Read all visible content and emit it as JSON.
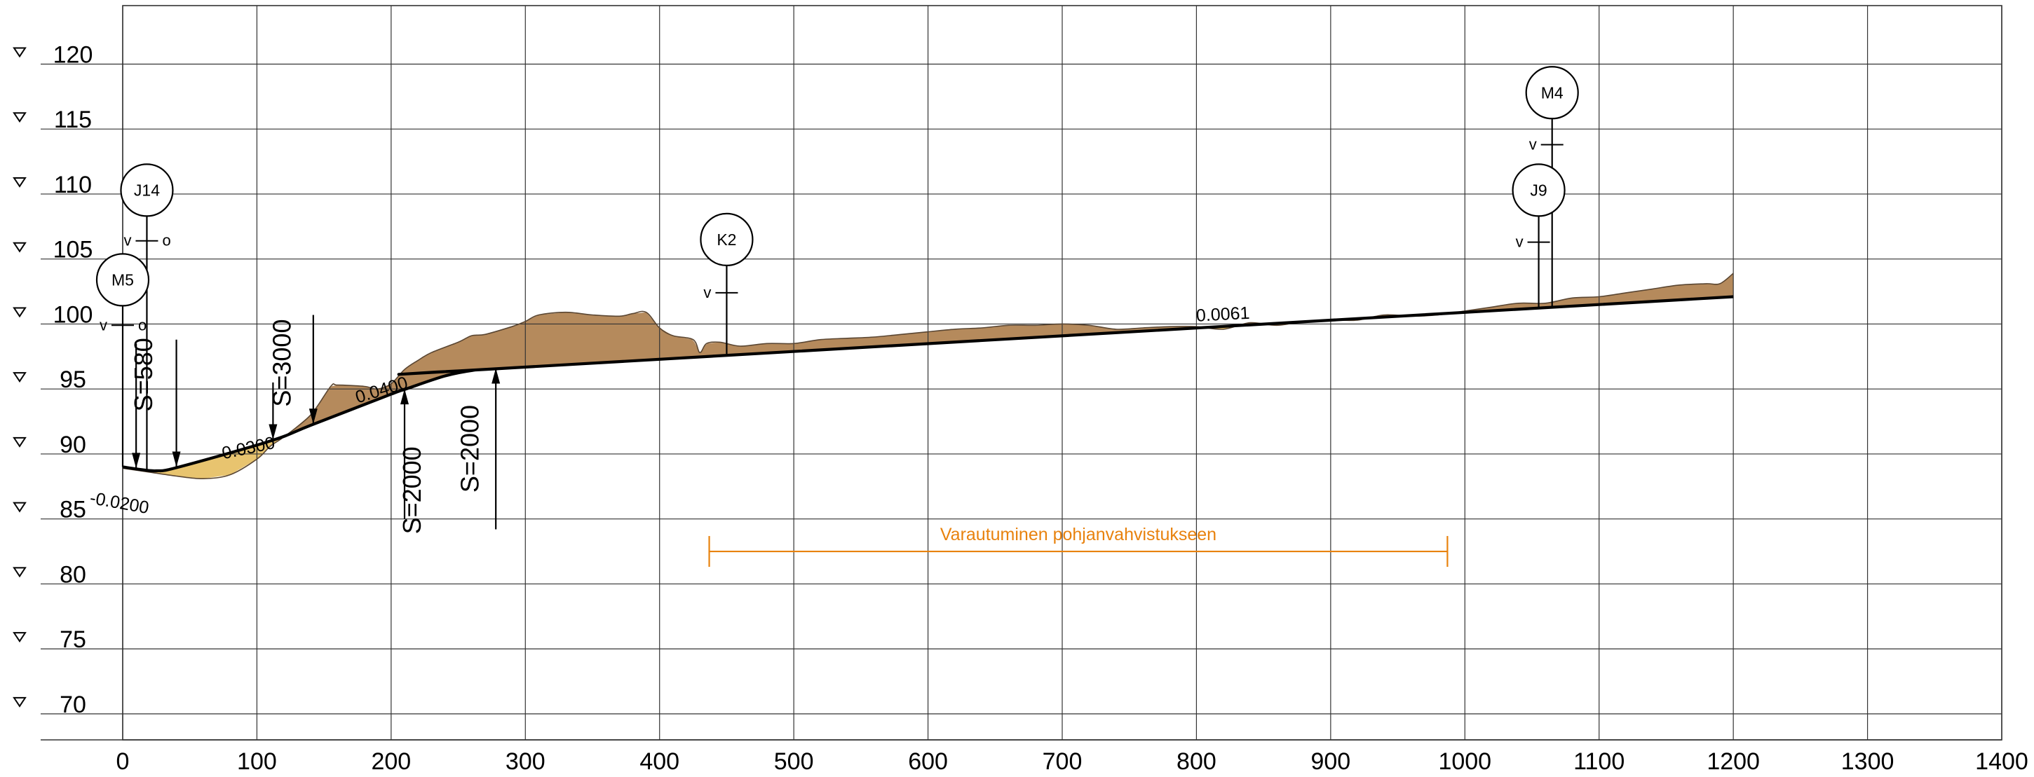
{
  "chart_data": {
    "type": "line",
    "title": "",
    "xlabel": "",
    "ylabel": "",
    "x_ticks": [
      "0",
      "100",
      "200",
      "300",
      "400",
      "500",
      "600",
      "700",
      "800",
      "900",
      "1000",
      "1100",
      "1200",
      "1300",
      "1400"
    ],
    "y_ticks": [
      "70",
      "75",
      "80",
      "85",
      "90",
      "95",
      "100",
      "105",
      "110",
      "115",
      "120"
    ],
    "xlim": [
      0,
      1400
    ],
    "ylim": [
      68,
      124.5
    ],
    "grid": true,
    "design_line": {
      "x": [
        0,
        10,
        25,
        42,
        110,
        140,
        200,
        211,
        240,
        262,
        278,
        1200
      ],
      "y": [
        89.0,
        88.85,
        88.7,
        89.0,
        91.0,
        92.2,
        94.6,
        95.0,
        96.0,
        96.45,
        96.55,
        102.1
      ]
    },
    "ground_line": {
      "x": [
        0,
        20,
        40,
        60,
        80,
        100,
        110,
        120,
        140,
        155,
        160,
        180,
        190,
        200,
        210,
        220,
        230,
        250,
        260,
        270,
        290,
        300,
        310,
        330,
        350,
        370,
        380,
        390,
        400,
        410,
        425,
        430,
        435,
        445,
        460,
        480,
        500,
        520,
        540,
        560,
        580,
        600,
        620,
        640,
        660,
        680,
        700,
        720,
        740,
        760,
        780,
        800,
        820,
        840,
        860,
        880,
        900,
        920,
        940,
        960,
        980,
        1000,
        1020,
        1040,
        1060,
        1080,
        1100,
        1120,
        1140,
        1160,
        1180,
        1190,
        1200
      ],
      "y": [
        88.9,
        88.6,
        88.3,
        88.1,
        88.4,
        89.6,
        90.6,
        91.3,
        93.0,
        95.2,
        95.3,
        95.2,
        95.0,
        95.4,
        96.5,
        97.2,
        97.8,
        98.6,
        99.1,
        99.2,
        99.8,
        100.2,
        100.7,
        100.9,
        100.7,
        100.6,
        100.8,
        100.9,
        99.7,
        99.1,
        98.8,
        97.8,
        98.5,
        98.6,
        98.3,
        98.5,
        98.5,
        98.8,
        98.9,
        99.0,
        99.2,
        99.4,
        99.6,
        99.7,
        99.9,
        99.9,
        100.0,
        99.9,
        99.6,
        99.7,
        99.8,
        99.8,
        99.6,
        100.1,
        99.9,
        100.2,
        100.3,
        100.3,
        100.7,
        100.6,
        100.7,
        101.0,
        101.3,
        101.6,
        101.6,
        102.0,
        102.1,
        102.4,
        102.7,
        103.0,
        103.1,
        103.1,
        103.9
      ]
    },
    "grades": [
      {
        "label": "-0.0200",
        "x": -25,
        "y": 86.2,
        "angle": 10
      },
      {
        "label": "0.0300",
        "x": 75,
        "y": 89.6,
        "angle": -12
      },
      {
        "label": "0.0400",
        "x": 175,
        "y": 93.9,
        "angle": -17
      },
      {
        "label": "0.0061",
        "x": 800,
        "y": 100.2,
        "angle": -3
      }
    ],
    "vertical_curves": [
      {
        "label": "S=580",
        "label_x": 22,
        "label_y": 96.1,
        "arrows": [
          {
            "x": 10,
            "from": 98.5,
            "to": 88.9
          },
          {
            "x": 40,
            "from": 98.8,
            "to": 89.0
          }
        ]
      },
      {
        "label": "S=3000",
        "label_x": 125,
        "label_y": 97.0,
        "arrows": [
          {
            "x": 112,
            "from": 95.5,
            "to": 91.1
          },
          {
            "x": 142,
            "from": 100.7,
            "to": 92.3
          }
        ]
      },
      {
        "label": "S=2000",
        "label_x": 222,
        "label_y": 87.2,
        "arrows": [
          {
            "x": 210,
            "from": 85.0,
            "to": 95.0
          }
        ]
      },
      {
        "label": "S=2000",
        "label_x": 265,
        "label_y": 90.4,
        "arrows": [
          {
            "x": 278,
            "from": 84.2,
            "to": 96.6
          }
        ]
      }
    ],
    "stations": [
      {
        "label": "J14",
        "x": 18,
        "top": 110.3,
        "bottom": 88.8,
        "ticks": [
          {
            "y": 106.4,
            "left": "v",
            "right": "o"
          }
        ]
      },
      {
        "label": "M5",
        "x": 0,
        "top": 103.4,
        "bottom": 89.0,
        "ticks": [
          {
            "y": 99.9,
            "left": "v",
            "right": "o"
          }
        ]
      },
      {
        "label": "K2",
        "x": 450,
        "top": 106.5,
        "bottom": 97.7,
        "ticks": [
          {
            "y": 102.4,
            "left": "v",
            "right": ""
          }
        ]
      },
      {
        "label": "M4",
        "x": 1065,
        "top": 117.8,
        "bottom": 101.3,
        "ticks": [
          {
            "y": 113.8,
            "left": "v",
            "right": ""
          }
        ]
      },
      {
        "label": "J9",
        "x": 1055,
        "top": 110.3,
        "bottom": 101.3,
        "ticks": [
          {
            "y": 106.3,
            "left": "v",
            "right": ""
          }
        ]
      }
    ],
    "annotation": {
      "label": "Varautuminen pohjanvahvistukseen",
      "x_start": 437,
      "x_end": 987,
      "y": 82.5
    }
  },
  "colors": {
    "ground_fill": "#b58a5c",
    "fill_shallow": "#e8c46f",
    "design": "#000000",
    "grid": "#333333",
    "annotation": "#e8820e"
  }
}
